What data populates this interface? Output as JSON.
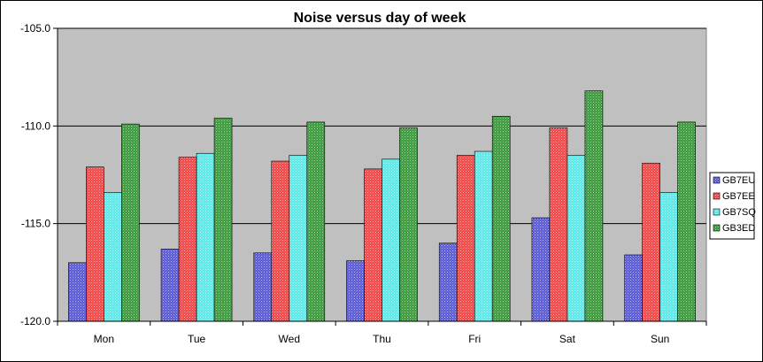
{
  "chart_data": {
    "type": "bar",
    "title": "Noise versus day of week",
    "xlabel": "",
    "ylabel": "",
    "categories": [
      "Mon",
      "Tue",
      "Wed",
      "Thu",
      "Fri",
      "Sat",
      "Sun"
    ],
    "series": [
      {
        "name": "GB7EU",
        "color": "#5b5bd6",
        "values": [
          -117.0,
          -116.3,
          -116.5,
          -116.9,
          -116.0,
          -114.7,
          -116.6
        ]
      },
      {
        "name": "GB7EE",
        "color": "#f04848",
        "values": [
          -112.1,
          -111.6,
          -111.8,
          -112.2,
          -111.5,
          -110.1,
          -111.9
        ]
      },
      {
        "name": "GB7SQ",
        "color": "#5ee8e8",
        "values": [
          -113.4,
          -111.4,
          -111.5,
          -111.7,
          -111.3,
          -111.5,
          -113.4
        ]
      },
      {
        "name": "GB3ED",
        "color": "#3c9a3c",
        "values": [
          -109.9,
          -109.6,
          -109.8,
          -110.1,
          -109.5,
          -108.2,
          -109.8
        ]
      }
    ],
    "ylim": [
      -120.0,
      -105.0
    ],
    "yticks": [
      "-105.0",
      "-110.0",
      "-115.0",
      "-120.0"
    ],
    "ytick_values": [
      -105,
      -110,
      -115,
      -120
    ],
    "grid": true,
    "plot_background": "#c0c0c0",
    "legend_position": "right"
  }
}
